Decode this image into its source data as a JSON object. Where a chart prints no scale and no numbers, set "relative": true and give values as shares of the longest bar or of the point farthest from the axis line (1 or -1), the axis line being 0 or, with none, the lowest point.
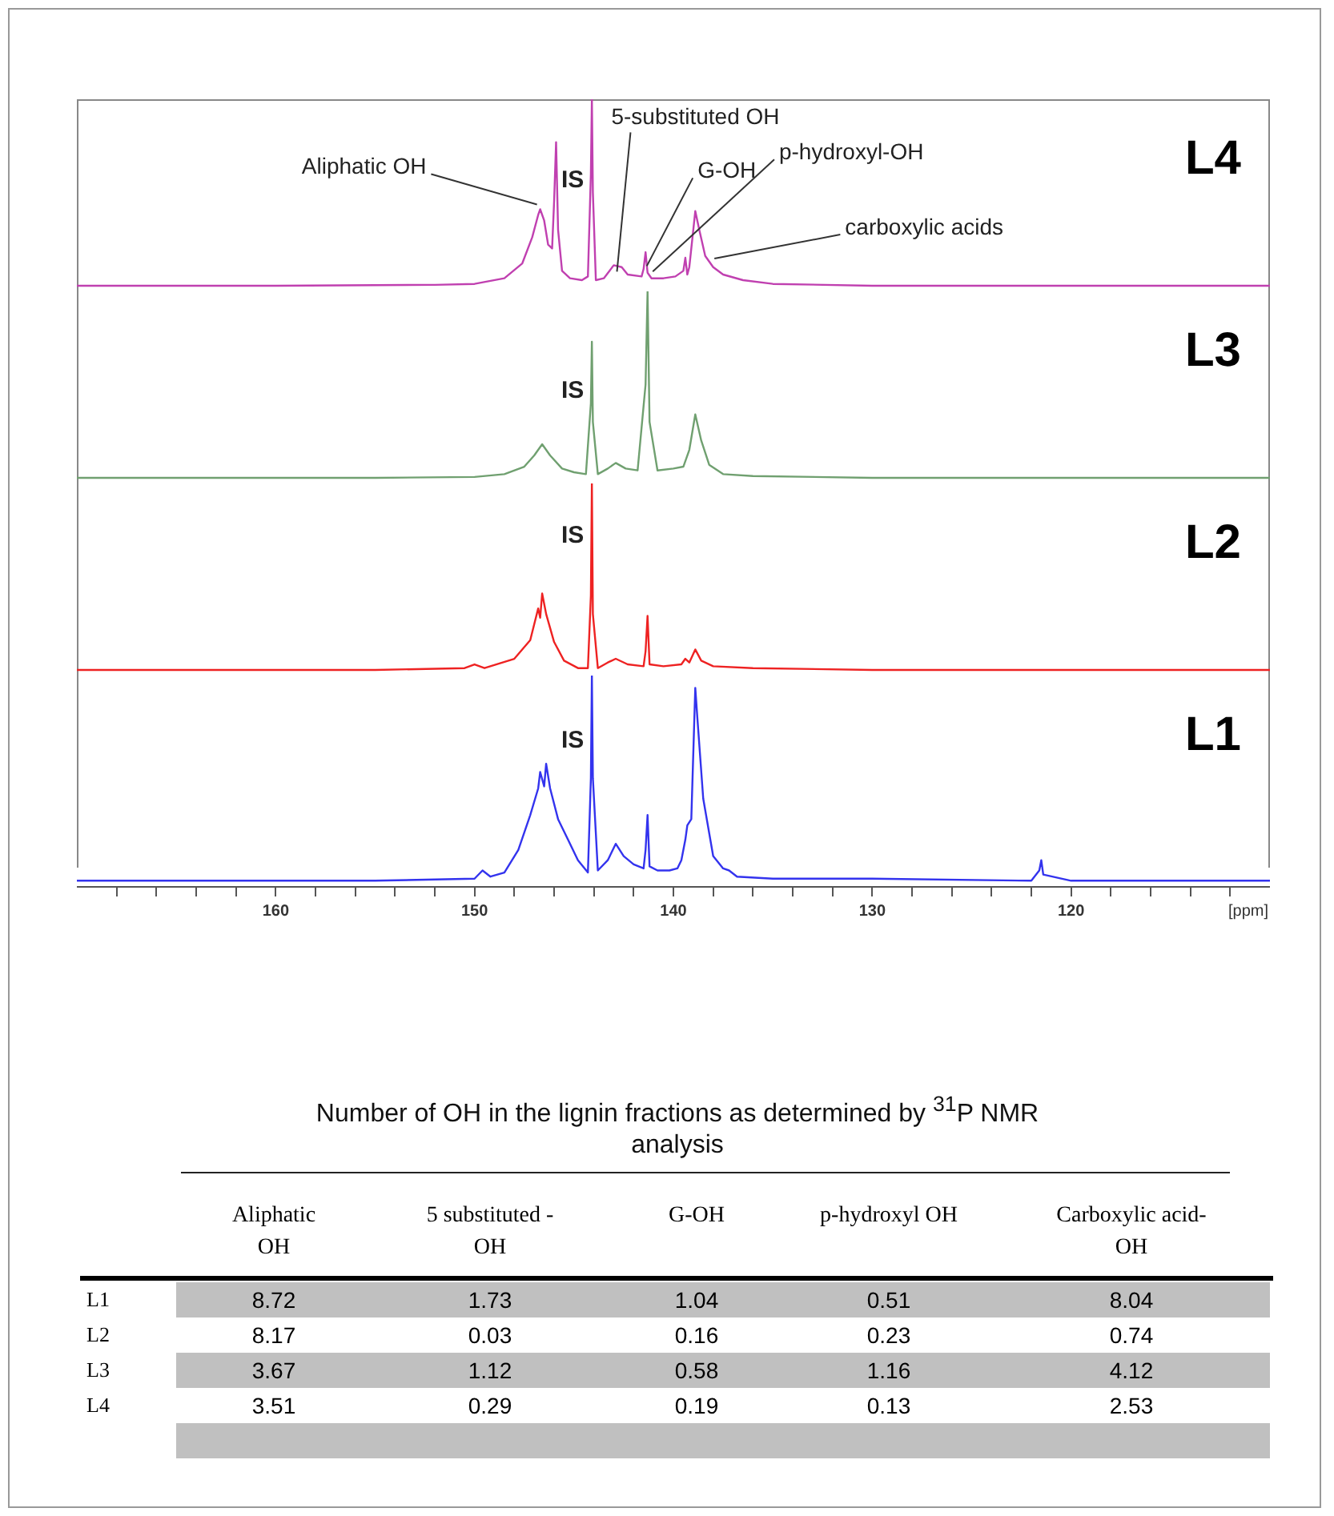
{
  "chart_data": [
    {
      "type": "line",
      "relative": true,
      "xlim": [
        170,
        110
      ],
      "tick_labels": false,
      "series": [
        {
          "name": "L4",
          "color": "#c040b0",
          "x": [
            170,
            160,
            152,
            150,
            148.5,
            147.6,
            147.1,
            146.8,
            146.7,
            146.5,
            146.3,
            146.1,
            146.0,
            145.9,
            145.8,
            145.6,
            145.2,
            144.6,
            144.3,
            144.15,
            144.1,
            144.05,
            143.9,
            143.5,
            143.0,
            142.6,
            142.3,
            141.6,
            141.5,
            141.4,
            141.3,
            141.1,
            140.5,
            139.9,
            139.5,
            139.4,
            139.3,
            139.2,
            139.0,
            138.9,
            138.7,
            138.4,
            138.0,
            137.5,
            136.5,
            135,
            130,
            120,
            110
          ],
          "values": [
            0,
            0,
            0.005,
            0.01,
            0.04,
            0.12,
            0.26,
            0.38,
            0.41,
            0.35,
            0.22,
            0.2,
            0.45,
            0.77,
            0.3,
            0.08,
            0.04,
            0.03,
            0.05,
            0.6,
            1,
            0.5,
            0.03,
            0.04,
            0.11,
            0.1,
            0.06,
            0.05,
            0.09,
            0.18,
            0.07,
            0.04,
            0.04,
            0.05,
            0.08,
            0.15,
            0.06,
            0.1,
            0.3,
            0.4,
            0.3,
            0.16,
            0.1,
            0.06,
            0.03,
            0.01,
            0,
            0,
            0
          ]
        }
      ],
      "annotations": [
        {
          "text": "Aliphatic OH",
          "x": 146.7,
          "y": 0.41
        },
        {
          "text": "IS",
          "x": 144.1,
          "y": 1
        },
        {
          "text": "5-substituted OH",
          "x": 143.0,
          "y": 0.05
        },
        {
          "text": "G-OH",
          "x": 141.5,
          "y": 0.08
        },
        {
          "text": "p-hydroxyl-OH",
          "x": 141.2,
          "y": 0.05
        },
        {
          "text": "carboxylic acids",
          "x": 138.1,
          "y": 0.12
        }
      ]
    },
    {
      "type": "line",
      "relative": true,
      "xlim": [
        170,
        110
      ],
      "tick_labels": false,
      "series": [
        {
          "name": "L3",
          "color": "#70a070",
          "x": [
            170,
            155,
            150,
            148.5,
            147.5,
            147.0,
            146.6,
            146.2,
            145.6,
            145,
            144.4,
            144.15,
            144.1,
            144.05,
            143.8,
            143.3,
            142.9,
            142.4,
            141.8,
            141.4,
            141.3,
            141.2,
            140.8,
            140,
            139.5,
            139.2,
            138.9,
            138.6,
            138.2,
            137.5,
            136,
            130,
            120,
            110
          ],
          "values": [
            0,
            0,
            0.005,
            0.02,
            0.06,
            0.12,
            0.18,
            0.12,
            0.05,
            0.03,
            0.02,
            0.4,
            0.73,
            0.3,
            0.02,
            0.05,
            0.08,
            0.05,
            0.04,
            0.5,
            1,
            0.3,
            0.04,
            0.05,
            0.06,
            0.15,
            0.34,
            0.2,
            0.07,
            0.02,
            0.01,
            0,
            0,
            0
          ]
        }
      ],
      "annotations": [
        {
          "text": "IS",
          "x": 144.1,
          "y": 0.73
        }
      ]
    },
    {
      "type": "line",
      "relative": true,
      "xlim": [
        170,
        110
      ],
      "tick_labels": false,
      "series": [
        {
          "name": "L2",
          "color": "#ee2222",
          "x": [
            170,
            155,
            150.5,
            150,
            149.5,
            148,
            147.2,
            146.8,
            146.7,
            146.6,
            146.4,
            146.0,
            145.5,
            144.8,
            144.3,
            144.15,
            144.1,
            144.05,
            143.8,
            143.3,
            142.9,
            142.3,
            141.5,
            141.4,
            141.3,
            141.2,
            140.5,
            139.6,
            139.4,
            139.2,
            138.9,
            138.6,
            138,
            136,
            130,
            120,
            110
          ],
          "values": [
            0,
            0,
            0.01,
            0.03,
            0.01,
            0.06,
            0.16,
            0.33,
            0.28,
            0.41,
            0.3,
            0.15,
            0.05,
            0.01,
            0.01,
            0.4,
            1,
            0.3,
            0.01,
            0.04,
            0.06,
            0.03,
            0.02,
            0.1,
            0.29,
            0.03,
            0.02,
            0.03,
            0.06,
            0.04,
            0.11,
            0.05,
            0.02,
            0.01,
            0,
            0,
            0
          ]
        }
      ],
      "annotations": [
        {
          "text": "IS",
          "x": 144.1,
          "y": 1
        }
      ]
    },
    {
      "type": "line",
      "relative": true,
      "xlim": [
        170,
        110
      ],
      "xlabel": "[ppm]",
      "xticks": [
        {
          "value": 168,
          "label": null
        },
        {
          "value": 166,
          "label": null
        },
        {
          "value": 164,
          "label": null
        },
        {
          "value": 162,
          "label": null
        },
        160,
        {
          "value": 158,
          "label": null
        },
        {
          "value": 156,
          "label": null
        },
        {
          "value": 154,
          "label": null
        },
        {
          "value": 152,
          "label": null
        },
        150,
        {
          "value": 148,
          "label": null
        },
        {
          "value": 146,
          "label": null
        },
        {
          "value": 144,
          "label": null
        },
        {
          "value": 142,
          "label": null
        },
        140,
        {
          "value": 138,
          "label": null
        },
        {
          "value": 136,
          "label": null
        },
        {
          "value": 134,
          "label": null
        },
        {
          "value": 132,
          "label": null
        },
        130,
        {
          "value": 128,
          "label": null
        },
        {
          "value": 126,
          "label": null
        },
        {
          "value": 124,
          "label": null
        },
        {
          "value": 122,
          "label": null
        },
        120,
        {
          "value": 118,
          "label": null
        },
        {
          "value": 116,
          "label": null
        },
        {
          "value": 114,
          "label": null
        },
        {
          "value": 112,
          "label": null
        }
      ],
      "series": [
        {
          "name": "L1",
          "color": "#3333ee",
          "x": [
            170,
            155,
            150,
            149.6,
            149.2,
            148.5,
            147.8,
            147.2,
            146.8,
            146.7,
            146.5,
            146.4,
            146.2,
            145.8,
            145.3,
            144.8,
            144.3,
            144.15,
            144.1,
            144.05,
            143.8,
            143.3,
            142.9,
            142.5,
            142,
            141.5,
            141.4,
            141.3,
            141.2,
            140.8,
            140.2,
            139.8,
            139.6,
            139.4,
            139.3,
            139.1,
            138.9,
            138.8,
            138.5,
            138.0,
            137.5,
            137.2,
            136.8,
            135,
            130,
            122,
            121.6,
            121.5,
            121.4,
            120,
            110
          ],
          "values": [
            0,
            0,
            0.01,
            0.05,
            0.02,
            0.04,
            0.15,
            0.32,
            0.45,
            0.53,
            0.46,
            0.57,
            0.45,
            0.3,
            0.2,
            0.1,
            0.04,
            0.5,
            1,
            0.5,
            0.05,
            0.1,
            0.18,
            0.12,
            0.08,
            0.06,
            0.15,
            0.32,
            0.07,
            0.05,
            0.05,
            0.06,
            0.1,
            0.2,
            0.27,
            0.3,
            0.94,
            0.8,
            0.4,
            0.12,
            0.06,
            0.05,
            0.02,
            0.01,
            0.01,
            0,
            0.05,
            0.1,
            0.03,
            0,
            0
          ]
        }
      ],
      "annotations": [
        {
          "text": "IS",
          "x": 144.1,
          "y": 1
        }
      ]
    },
    {
      "type": "heatmap",
      "data_labels": true,
      "title": "Number of OH in the lignin fractions as determined by $^{31}$P NMR analysis",
      "categories": [
        "Aliphatic OH",
        "5 substituted -OH",
        "G-OH",
        "p-hydroxyl OH",
        "Carboxylic acid-OH"
      ],
      "y_categories": [
        "L1",
        "L2",
        "L3",
        "L4"
      ],
      "cells": [
        [
          8.72,
          1.73,
          1.04,
          0.51,
          8.04
        ],
        [
          8.17,
          0.03,
          0.16,
          0.23,
          0.74
        ],
        [
          3.67,
          1.12,
          0.58,
          1.16,
          4.12
        ],
        [
          3.51,
          0.29,
          0.19,
          0.13,
          2.53
        ]
      ]
    }
  ]
}
